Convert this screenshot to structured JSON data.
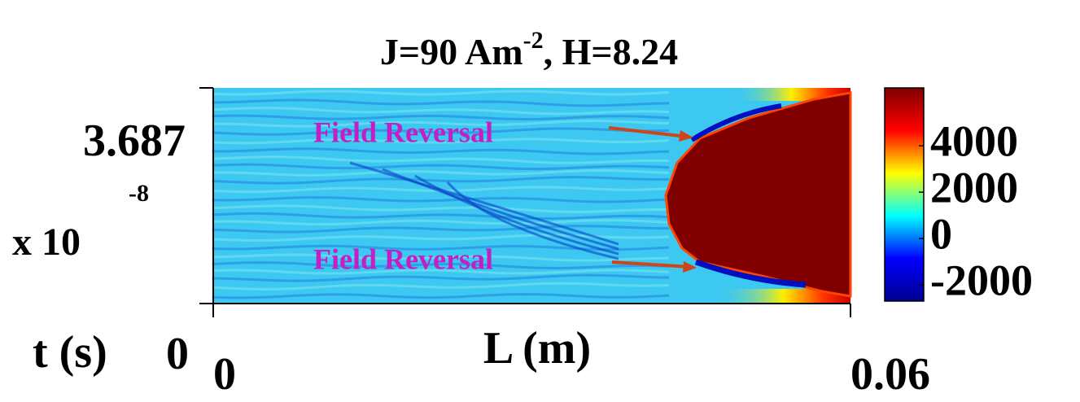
{
  "chart_data": {
    "type": "heatmap",
    "title": [
      "J=90 Am",
      "-2",
      ", H=8.24"
    ],
    "xlabel": "L (m)",
    "ylabel": "t (s)",
    "xlim": [
      0,
      0.06
    ],
    "xticks": [
      0,
      0.06
    ],
    "ylim": [
      0,
      3.687
    ],
    "yticks": [
      0,
      3.687
    ],
    "y_multiplier": [
      "x 10",
      "-8"
    ],
    "clim": [
      -2700,
      6500
    ],
    "cticks": [
      -2000,
      0,
      2000,
      4000
    ],
    "colormap": [
      "#00008f",
      "#0000ff",
      "#00ffff",
      "#ffff00",
      "#ff0000",
      "#800000"
    ],
    "annotations": [
      "Field Reversal",
      "Field Reversal"
    ]
  }
}
